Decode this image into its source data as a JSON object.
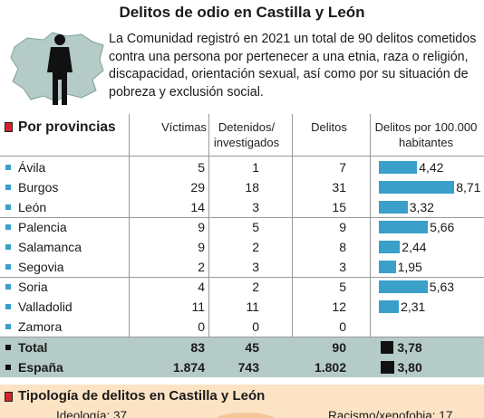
{
  "title": "Delitos de odio en Castilla y León",
  "intro": "La Comunidad registró en 2021 un total de 90 delitos cometidos contra una persona por pertenecer a una etnia, raza o religión, discapacidad, orientación sexual, así como por su situación de pobreza y exclusión social.",
  "colors": {
    "bar": "#3aa0c9",
    "total_band": "#b5cbc7",
    "accent_red": "#d8232a",
    "section_bg": "#fbe3c4"
  },
  "table": {
    "section_title": "Por provincias",
    "headers": {
      "victimas": "Víctimas",
      "detenidos": "Detenidos/ investigados",
      "delitos": "Delitos",
      "tasa": "Delitos por 100.000 habitantes"
    }
  },
  "chart_data": {
    "type": "bar",
    "categories": [
      "Ávila",
      "Burgos",
      "León",
      "Palencia",
      "Salamanca",
      "Segovia",
      "Soria",
      "Valladolid",
      "Zamora"
    ],
    "victimas": [
      5,
      29,
      14,
      9,
      9,
      2,
      4,
      11,
      0
    ],
    "detenidos": [
      1,
      18,
      3,
      5,
      2,
      3,
      2,
      11,
      0
    ],
    "delitos": [
      7,
      31,
      15,
      9,
      8,
      3,
      5,
      12,
      0
    ],
    "tasa": [
      4.42,
      8.71,
      3.32,
      5.66,
      2.44,
      1.95,
      5.63,
      2.31,
      null
    ],
    "tasa_labels": [
      "4,42",
      "8,71",
      "3,32",
      "5,66",
      "2,44",
      "1,95",
      "5,63",
      "2,31",
      ""
    ],
    "victimas_labels": [
      "5",
      "29",
      "14",
      "9",
      "9",
      "2",
      "4",
      "11",
      "0"
    ],
    "detenidos_labels": [
      "1",
      "18",
      "3",
      "5",
      "2",
      "3",
      "2",
      "11",
      "0"
    ],
    "delitos_labels": [
      "7",
      "31",
      "15",
      "9",
      "8",
      "3",
      "5",
      "12",
      "0"
    ],
    "totals": [
      {
        "name": "Total",
        "victimas": "83",
        "detenidos": "45",
        "delitos": "90",
        "tasa": 3.78,
        "tasa_label": "3,78"
      },
      {
        "name": "España",
        "victimas": "1.874",
        "detenidos": "743",
        "delitos": "1.802",
        "tasa": 3.8,
        "tasa_label": "3,80"
      }
    ],
    "xlim": [
      0,
      9
    ]
  },
  "tipologia": {
    "title": "Tipología de delitos en Castilla y León",
    "left": "Ideología: 37",
    "right": "Racismo/xenofobia: 17"
  }
}
